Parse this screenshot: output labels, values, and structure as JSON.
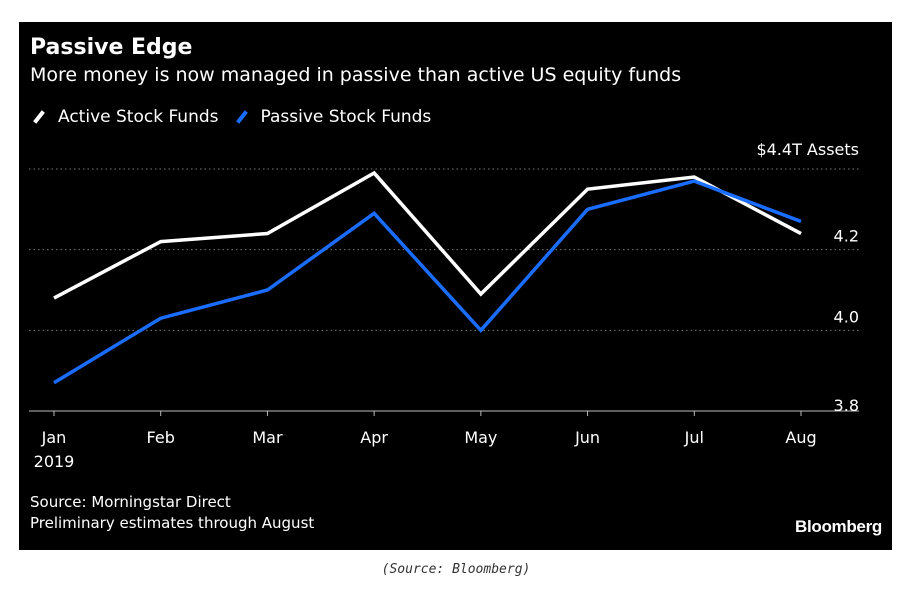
{
  "chart_data": {
    "type": "line",
    "title": "Passive Edge",
    "subtitle": "More money is now managed in passive than active US equity funds",
    "x": [
      "Jan",
      "Feb",
      "Mar",
      "Apr",
      "May",
      "Jun",
      "Jul",
      "Aug"
    ],
    "x_sub_label": "2019",
    "ylabel": "$4.4T Assets",
    "yticks": [
      3.8,
      4.0,
      4.2
    ],
    "ylim": [
      3.8,
      4.4
    ],
    "grid": true,
    "y_axis_side": "right",
    "legend_position": "top-left",
    "series": [
      {
        "name": "Active Stock Funds",
        "color": "#ffffff",
        "values": [
          4.08,
          4.22,
          4.24,
          4.39,
          4.09,
          4.35,
          4.38,
          4.24
        ]
      },
      {
        "name": "Passive Stock Funds",
        "color": "#1a6dff",
        "values": [
          3.87,
          4.03,
          4.1,
          4.29,
          4.0,
          4.3,
          4.37,
          4.27
        ]
      }
    ]
  },
  "footer": {
    "source": "Source: Morningstar Direct",
    "note": "Preliminary estimates through August",
    "brand": "Bloomberg"
  },
  "caption": "(Source: Bloomberg)"
}
